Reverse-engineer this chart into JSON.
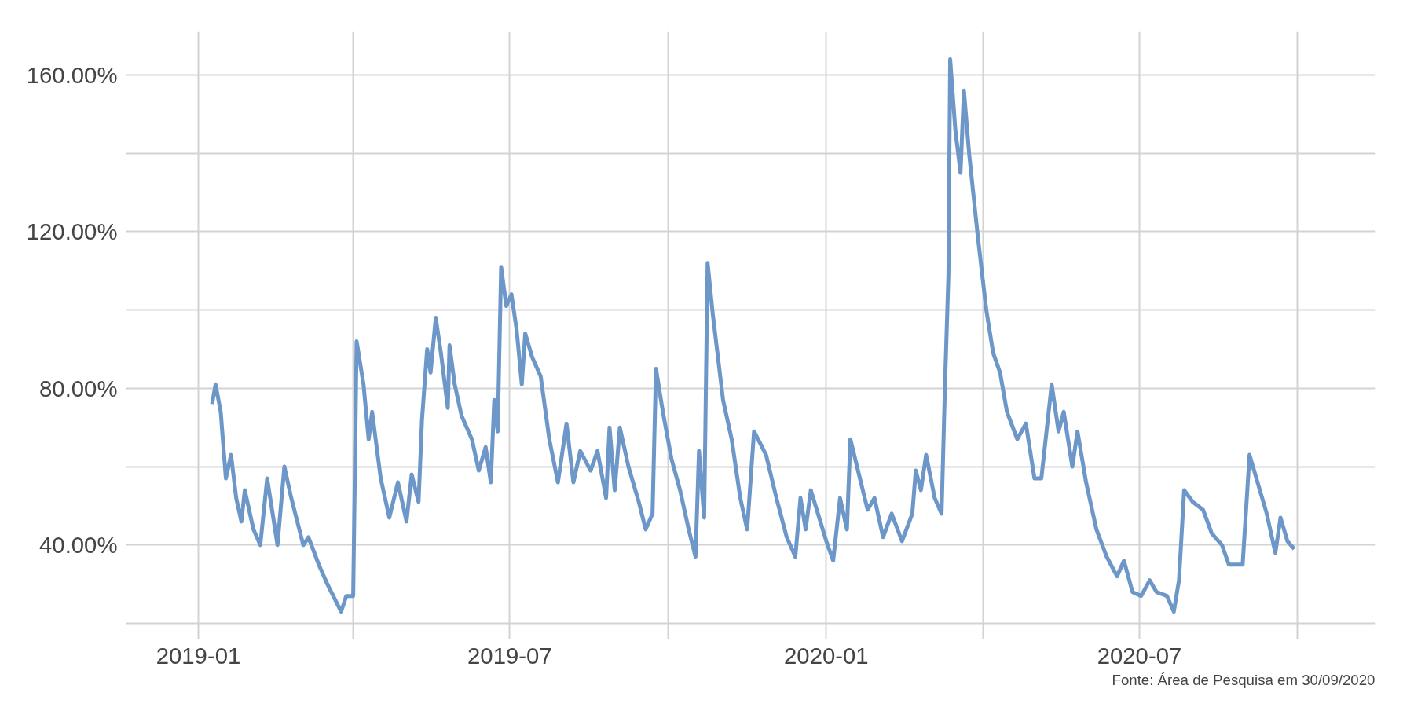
{
  "chart_data": {
    "type": "line",
    "annotations": [
      "Fonte: Área de Pesquisa em 30/09/2020"
    ],
    "x": [
      "2019-01-09",
      "2019-01-11",
      "2019-01-14",
      "2019-01-17",
      "2019-01-20",
      "2019-01-23",
      "2019-01-26",
      "2019-01-28",
      "2019-02-02",
      "2019-02-06",
      "2019-02-10",
      "2019-02-16",
      "2019-02-20",
      "2019-02-24",
      "2019-03-03",
      "2019-03-06",
      "2019-03-12",
      "2019-03-17",
      "2019-03-25",
      "2019-03-28",
      "2019-04-01",
      "2019-04-02",
      "2019-04-03",
      "2019-04-07",
      "2019-04-10",
      "2019-04-12",
      "2019-04-17",
      "2019-04-22",
      "2019-04-27",
      "2019-05-02",
      "2019-05-05",
      "2019-05-09",
      "2019-05-11",
      "2019-05-14",
      "2019-05-16",
      "2019-05-19",
      "2019-05-22",
      "2019-05-26",
      "2019-05-27",
      "2019-05-30",
      "2019-06-03",
      "2019-06-09",
      "2019-06-13",
      "2019-06-17",
      "2019-06-20",
      "2019-06-22",
      "2019-06-24",
      "2019-06-26",
      "2019-06-29",
      "2019-07-02",
      "2019-07-05",
      "2019-07-08",
      "2019-07-10",
      "2019-07-14",
      "2019-07-19",
      "2019-07-24",
      "2019-07-29",
      "2019-08-03",
      "2019-08-07",
      "2019-08-11",
      "2019-08-17",
      "2019-08-21",
      "2019-08-26",
      "2019-08-28",
      "2019-08-31",
      "2019-09-03",
      "2019-09-08",
      "2019-09-14",
      "2019-09-18",
      "2019-09-22",
      "2019-09-24",
      "2019-09-28",
      "2019-10-03",
      "2019-10-08",
      "2019-10-13",
      "2019-10-17",
      "2019-10-19",
      "2019-10-22",
      "2019-10-24",
      "2019-10-27",
      "2019-11-02",
      "2019-11-07",
      "2019-11-12",
      "2019-11-16",
      "2019-11-20",
      "2019-11-27",
      "2019-12-03",
      "2019-12-09",
      "2019-12-14",
      "2019-12-17",
      "2019-12-20",
      "2019-12-23",
      "2020-01-01",
      "2020-01-05",
      "2020-01-09",
      "2020-01-13",
      "2020-01-15",
      "2020-01-20",
      "2020-01-25",
      "2020-01-29",
      "2020-02-03",
      "2020-02-08",
      "2020-02-14",
      "2020-02-20",
      "2020-02-22",
      "2020-02-25",
      "2020-02-28",
      "2020-03-04",
      "2020-03-08",
      "2020-03-10",
      "2020-03-12",
      "2020-03-13",
      "2020-03-16",
      "2020-03-19",
      "2020-03-21",
      "2020-03-24",
      "2020-03-29",
      "2020-04-03",
      "2020-04-07",
      "2020-04-11",
      "2020-04-15",
      "2020-04-21",
      "2020-04-26",
      "2020-05-01",
      "2020-05-05",
      "2020-05-11",
      "2020-05-15",
      "2020-05-18",
      "2020-05-23",
      "2020-05-26",
      "2020-05-31",
      "2020-06-06",
      "2020-06-12",
      "2020-06-18",
      "2020-06-22",
      "2020-06-27",
      "2020-07-02",
      "2020-07-07",
      "2020-07-11",
      "2020-07-17",
      "2020-07-21",
      "2020-07-24",
      "2020-07-27",
      "2020-08-01",
      "2020-08-07",
      "2020-08-12",
      "2020-08-18",
      "2020-08-22",
      "2020-08-30",
      "2020-09-03",
      "2020-09-07",
      "2020-09-13",
      "2020-09-18",
      "2020-09-21",
      "2020-09-25",
      "2020-09-29"
    ],
    "series": [
      {
        "color": "#6c97c8",
        "values": [
          76,
          81,
          74,
          57,
          63,
          52,
          46,
          54,
          44,
          40,
          57,
          40,
          60,
          52,
          40,
          42,
          35,
          30,
          23,
          27,
          27,
          59,
          92,
          81,
          67,
          74,
          57,
          47,
          56,
          46,
          58,
          51,
          72,
          90,
          84,
          98,
          89,
          75,
          91,
          81,
          73,
          67,
          59,
          65,
          56,
          77,
          69,
          111,
          101,
          104,
          95,
          81,
          94,
          88,
          83,
          67,
          56,
          71,
          56,
          64,
          59,
          64,
          52,
          70,
          54,
          70,
          60,
          51,
          44,
          48,
          85,
          74,
          62,
          54,
          44,
          37,
          64,
          47,
          112,
          99,
          77,
          67,
          52,
          44,
          69,
          63,
          52,
          42,
          37,
          52,
          44,
          54,
          41,
          36,
          52,
          44,
          67,
          58,
          49,
          52,
          42,
          48,
          41,
          48,
          59,
          54,
          63,
          52,
          48,
          81,
          109,
          164,
          146,
          135,
          156,
          140,
          119,
          100,
          89,
          84,
          74,
          67,
          71,
          57,
          57,
          81,
          69,
          74,
          60,
          69,
          56,
          44,
          37,
          32,
          36,
          28,
          27,
          31,
          28,
          27,
          23,
          31,
          54,
          51,
          49,
          43,
          40,
          35,
          35,
          63,
          57,
          48,
          38,
          47,
          41,
          39
        ]
      }
    ],
    "xlim": [
      "2018-11-20",
      "2020-11-15"
    ],
    "ylim": [
      16,
      171
    ],
    "xticks": [
      {
        "value": "2019-01",
        "label": "2019-01"
      },
      {
        "value": "2019-04",
        "label": null
      },
      {
        "value": "2019-07",
        "label": "2019-07"
      },
      {
        "value": "2019-10",
        "label": null
      },
      {
        "value": "2020-01",
        "label": "2020-01"
      },
      {
        "value": "2020-04",
        "label": null
      },
      {
        "value": "2020-07",
        "label": "2020-07"
      },
      {
        "value": "2020-10",
        "label": null
      }
    ],
    "yticks": [
      {
        "value": 20,
        "label": null
      },
      {
        "value": 40,
        "label": "40.00%"
      },
      {
        "value": 60,
        "label": null
      },
      {
        "value": 80,
        "label": "80.00%"
      },
      {
        "value": 100,
        "label": null
      },
      {
        "value": 120,
        "label": "120.00%"
      },
      {
        "value": 140,
        "label": null
      },
      {
        "value": 160,
        "label": "160.00%"
      }
    ],
    "grid": true,
    "marker": "none",
    "line_style": "solid"
  }
}
